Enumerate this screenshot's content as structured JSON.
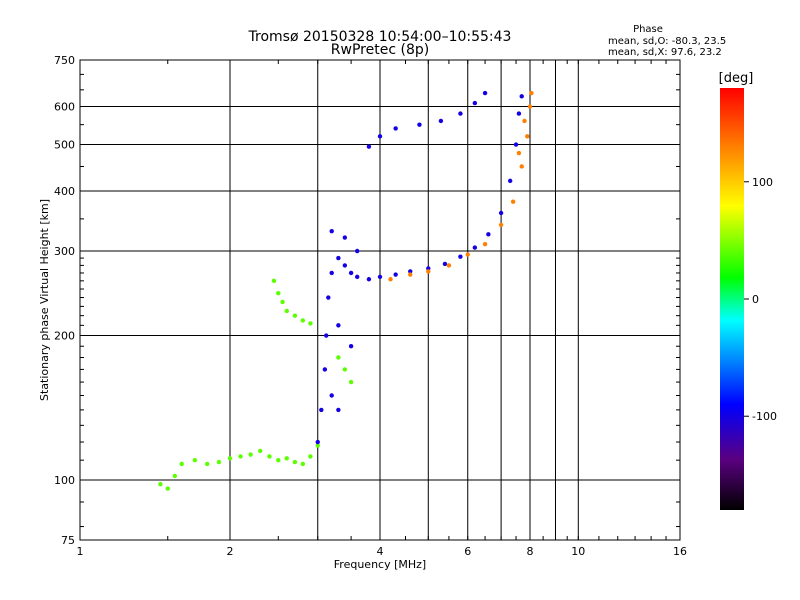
{
  "chart_data": {
    "type": "scatter",
    "title": "Tromsø 20150328 10:54:00–10:55:43",
    "subtitle": "RwPretec (8p)",
    "xlabel": "Frequency [MHz]",
    "ylabel": "Stationary phase Virtual Height [km]",
    "x_scale": "log",
    "y_scale": "log",
    "xlim": [
      1,
      16
    ],
    "ylim": [
      75,
      750
    ],
    "x_ticks": [
      "1",
      "2",
      "4",
      "6",
      "8",
      "10",
      "16"
    ],
    "y_ticks": [
      "75",
      "100",
      "200",
      "300",
      "400",
      "500",
      "600",
      "750"
    ],
    "x_ticks_unlabeled": [
      3,
      5,
      7,
      9
    ],
    "grid": true,
    "stats": {
      "header": "Phase",
      "o_line": "mean, sd,O: -80.3, 23.5",
      "x_line": "mean, sd,X:  97.6, 23.2"
    },
    "colorbar": {
      "label": "[deg]",
      "ticks": [
        "100",
        "0",
        "-100"
      ],
      "tick_values": [
        100,
        0,
        -100
      ],
      "range": [
        -180,
        180
      ]
    },
    "series": [
      {
        "points": [
          [
            1.45,
            98
          ],
          [
            1.5,
            96
          ],
          [
            1.55,
            102
          ],
          [
            1.6,
            108
          ],
          [
            1.7,
            110
          ],
          [
            1.8,
            108
          ],
          [
            1.9,
            109
          ],
          [
            2.0,
            111
          ],
          [
            2.1,
            112
          ],
          [
            2.2,
            113
          ],
          [
            2.3,
            115
          ],
          [
            2.4,
            112
          ],
          [
            2.5,
            110
          ],
          [
            2.6,
            111
          ],
          [
            2.7,
            109
          ],
          [
            2.8,
            108
          ],
          [
            2.9,
            112
          ],
          [
            3.0,
            118
          ],
          [
            2.45,
            260
          ],
          [
            2.5,
            245
          ],
          [
            2.55,
            235
          ],
          [
            2.6,
            225
          ],
          [
            2.7,
            220
          ],
          [
            2.8,
            215
          ],
          [
            2.9,
            212
          ],
          [
            3.3,
            180
          ],
          [
            3.4,
            170
          ],
          [
            3.5,
            160
          ]
        ],
        "phase": 40
      },
      {
        "points": [
          [
            3.0,
            120
          ],
          [
            3.05,
            140
          ],
          [
            3.1,
            170
          ],
          [
            3.12,
            200
          ],
          [
            3.15,
            240
          ],
          [
            3.2,
            270
          ],
          [
            3.3,
            290
          ],
          [
            3.4,
            280
          ],
          [
            3.5,
            270
          ],
          [
            3.6,
            265
          ],
          [
            3.8,
            262
          ],
          [
            4.0,
            265
          ],
          [
            4.3,
            268
          ],
          [
            4.6,
            272
          ],
          [
            5.0,
            276
          ],
          [
            5.4,
            282
          ],
          [
            5.8,
            292
          ],
          [
            6.2,
            305
          ],
          [
            6.6,
            325
          ],
          [
            7.0,
            360
          ],
          [
            7.3,
            420
          ],
          [
            7.5,
            500
          ],
          [
            7.6,
            580
          ],
          [
            7.7,
            630
          ],
          [
            3.8,
            495
          ],
          [
            4.0,
            520
          ],
          [
            4.3,
            540
          ],
          [
            4.8,
            550
          ],
          [
            5.3,
            560
          ],
          [
            5.8,
            580
          ],
          [
            6.2,
            610
          ],
          [
            6.5,
            640
          ],
          [
            3.2,
            330
          ],
          [
            3.4,
            320
          ],
          [
            3.6,
            300
          ],
          [
            3.3,
            210
          ],
          [
            3.5,
            190
          ],
          [
            3.2,
            150
          ],
          [
            3.3,
            140
          ]
        ],
        "phase": -100
      },
      {
        "points": [
          [
            4.2,
            262
          ],
          [
            4.6,
            268
          ],
          [
            5.0,
            272
          ],
          [
            5.5,
            280
          ],
          [
            6.0,
            295
          ],
          [
            6.5,
            310
          ],
          [
            7.0,
            340
          ],
          [
            7.4,
            380
          ],
          [
            7.7,
            450
          ],
          [
            7.9,
            520
          ],
          [
            8.0,
            600
          ],
          [
            8.05,
            640
          ],
          [
            7.8,
            560
          ],
          [
            7.6,
            480
          ]
        ],
        "phase": 130
      }
    ]
  }
}
